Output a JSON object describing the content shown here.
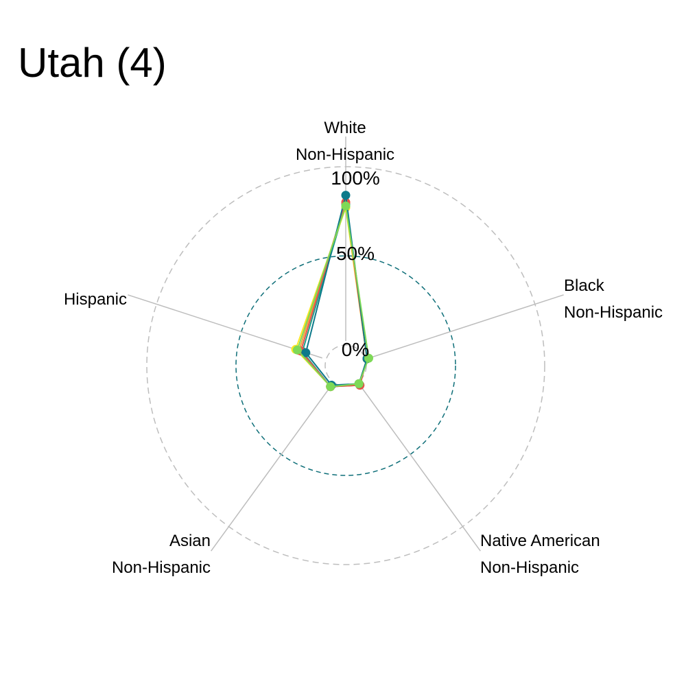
{
  "chart_data": {
    "type": "radar",
    "title": "Utah (4)",
    "axes": [
      {
        "line1": "White",
        "line2": "Non-Hispanic"
      },
      {
        "line1": "Black",
        "line2": "Non-Hispanic"
      },
      {
        "line1": "Native American",
        "line2": "Non-Hispanic"
      },
      {
        "line1": "Asian",
        "line2": "Non-Hispanic"
      },
      {
        "line1": "Hispanic",
        "line2": ""
      }
    ],
    "ring_labels": [
      "0%",
      "50%",
      "100%"
    ],
    "rlim": [
      0,
      100
    ],
    "grid": true,
    "legend": "none",
    "series": [
      {
        "color": "#1f9e89",
        "values": [
          79,
          1,
          2,
          3,
          14
        ]
      },
      {
        "color": "#fde725",
        "values": [
          77,
          1,
          1,
          3,
          18
        ]
      },
      {
        "color": "#f0a13a",
        "values": [
          80,
          1,
          2,
          3,
          16
        ]
      },
      {
        "color": "#e8524a",
        "values": [
          80,
          1,
          2,
          3,
          15
        ]
      },
      {
        "color": "#0d7a8a",
        "values": [
          84,
          1,
          1,
          2,
          12
        ]
      },
      {
        "color": "#7ed957",
        "values": [
          78,
          2,
          1,
          3,
          17
        ]
      }
    ]
  }
}
